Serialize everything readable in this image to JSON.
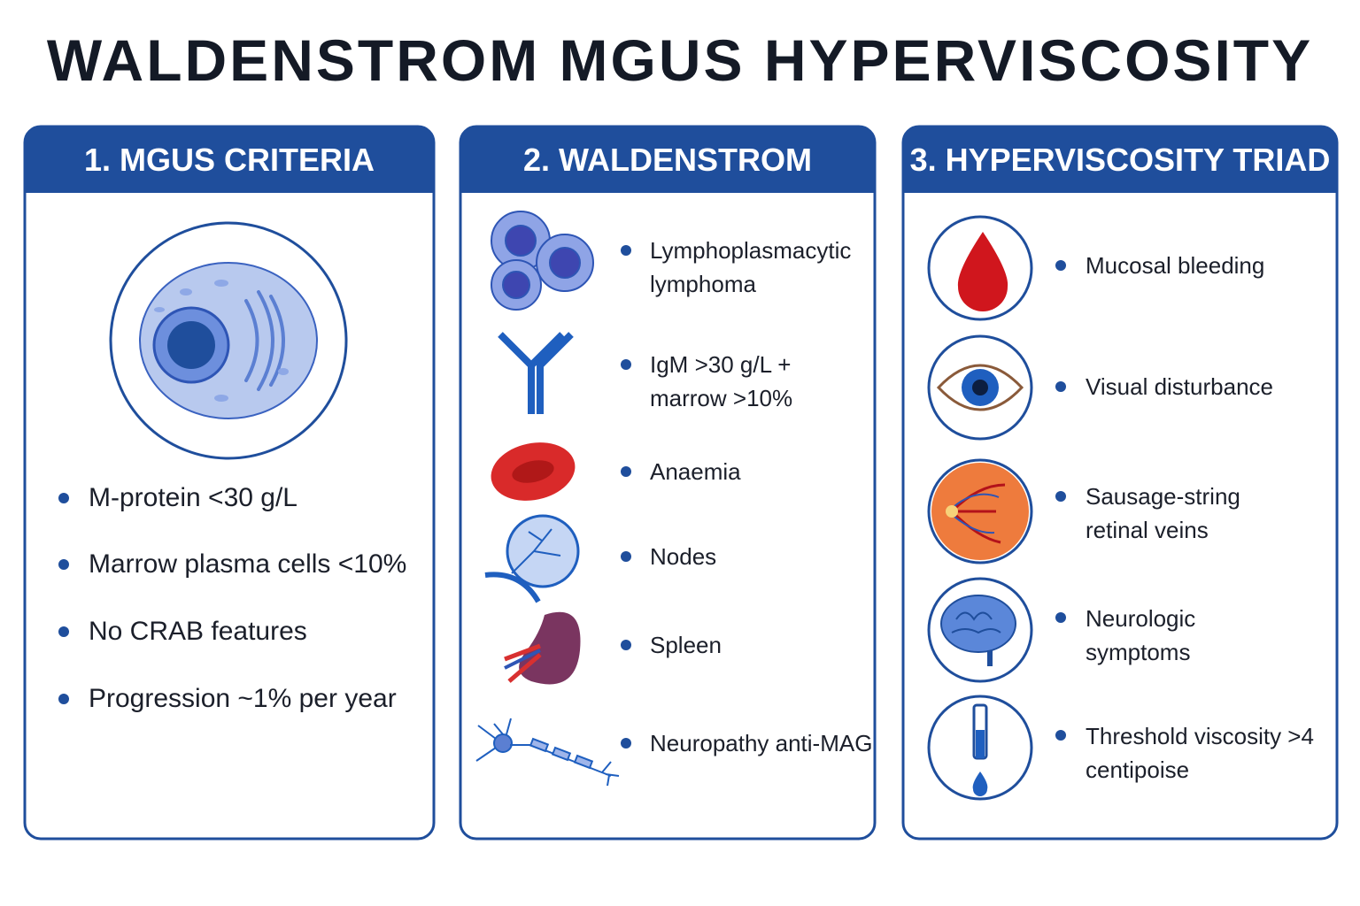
{
  "title": "WALDENSTROM MGUS HYPERVISCOSITY",
  "panels": [
    {
      "heading": "1. MGUS CRITERIA",
      "items": [
        "M-protein <30 g/L",
        "Marrow plasma cells <10%",
        "No CRAB features",
        "Progression ~1% per year"
      ]
    },
    {
      "heading": "2. WALDENSTROM",
      "items": [
        "Lymphoplasmacytic lymphoma",
        "IgM >30 g/L + marrow >10%",
        "Anaemia",
        "Nodes",
        "Spleen",
        "Neuropathy anti-MAG"
      ]
    },
    {
      "heading": "3. HYPERVISCOSITY TRIAD",
      "items": [
        "Mucosal bleeding",
        "Visual disturbance",
        "Sausage-string retinal veins",
        "Neurologic symptoms",
        "Threshold viscosity >4 centipoise"
      ]
    }
  ]
}
